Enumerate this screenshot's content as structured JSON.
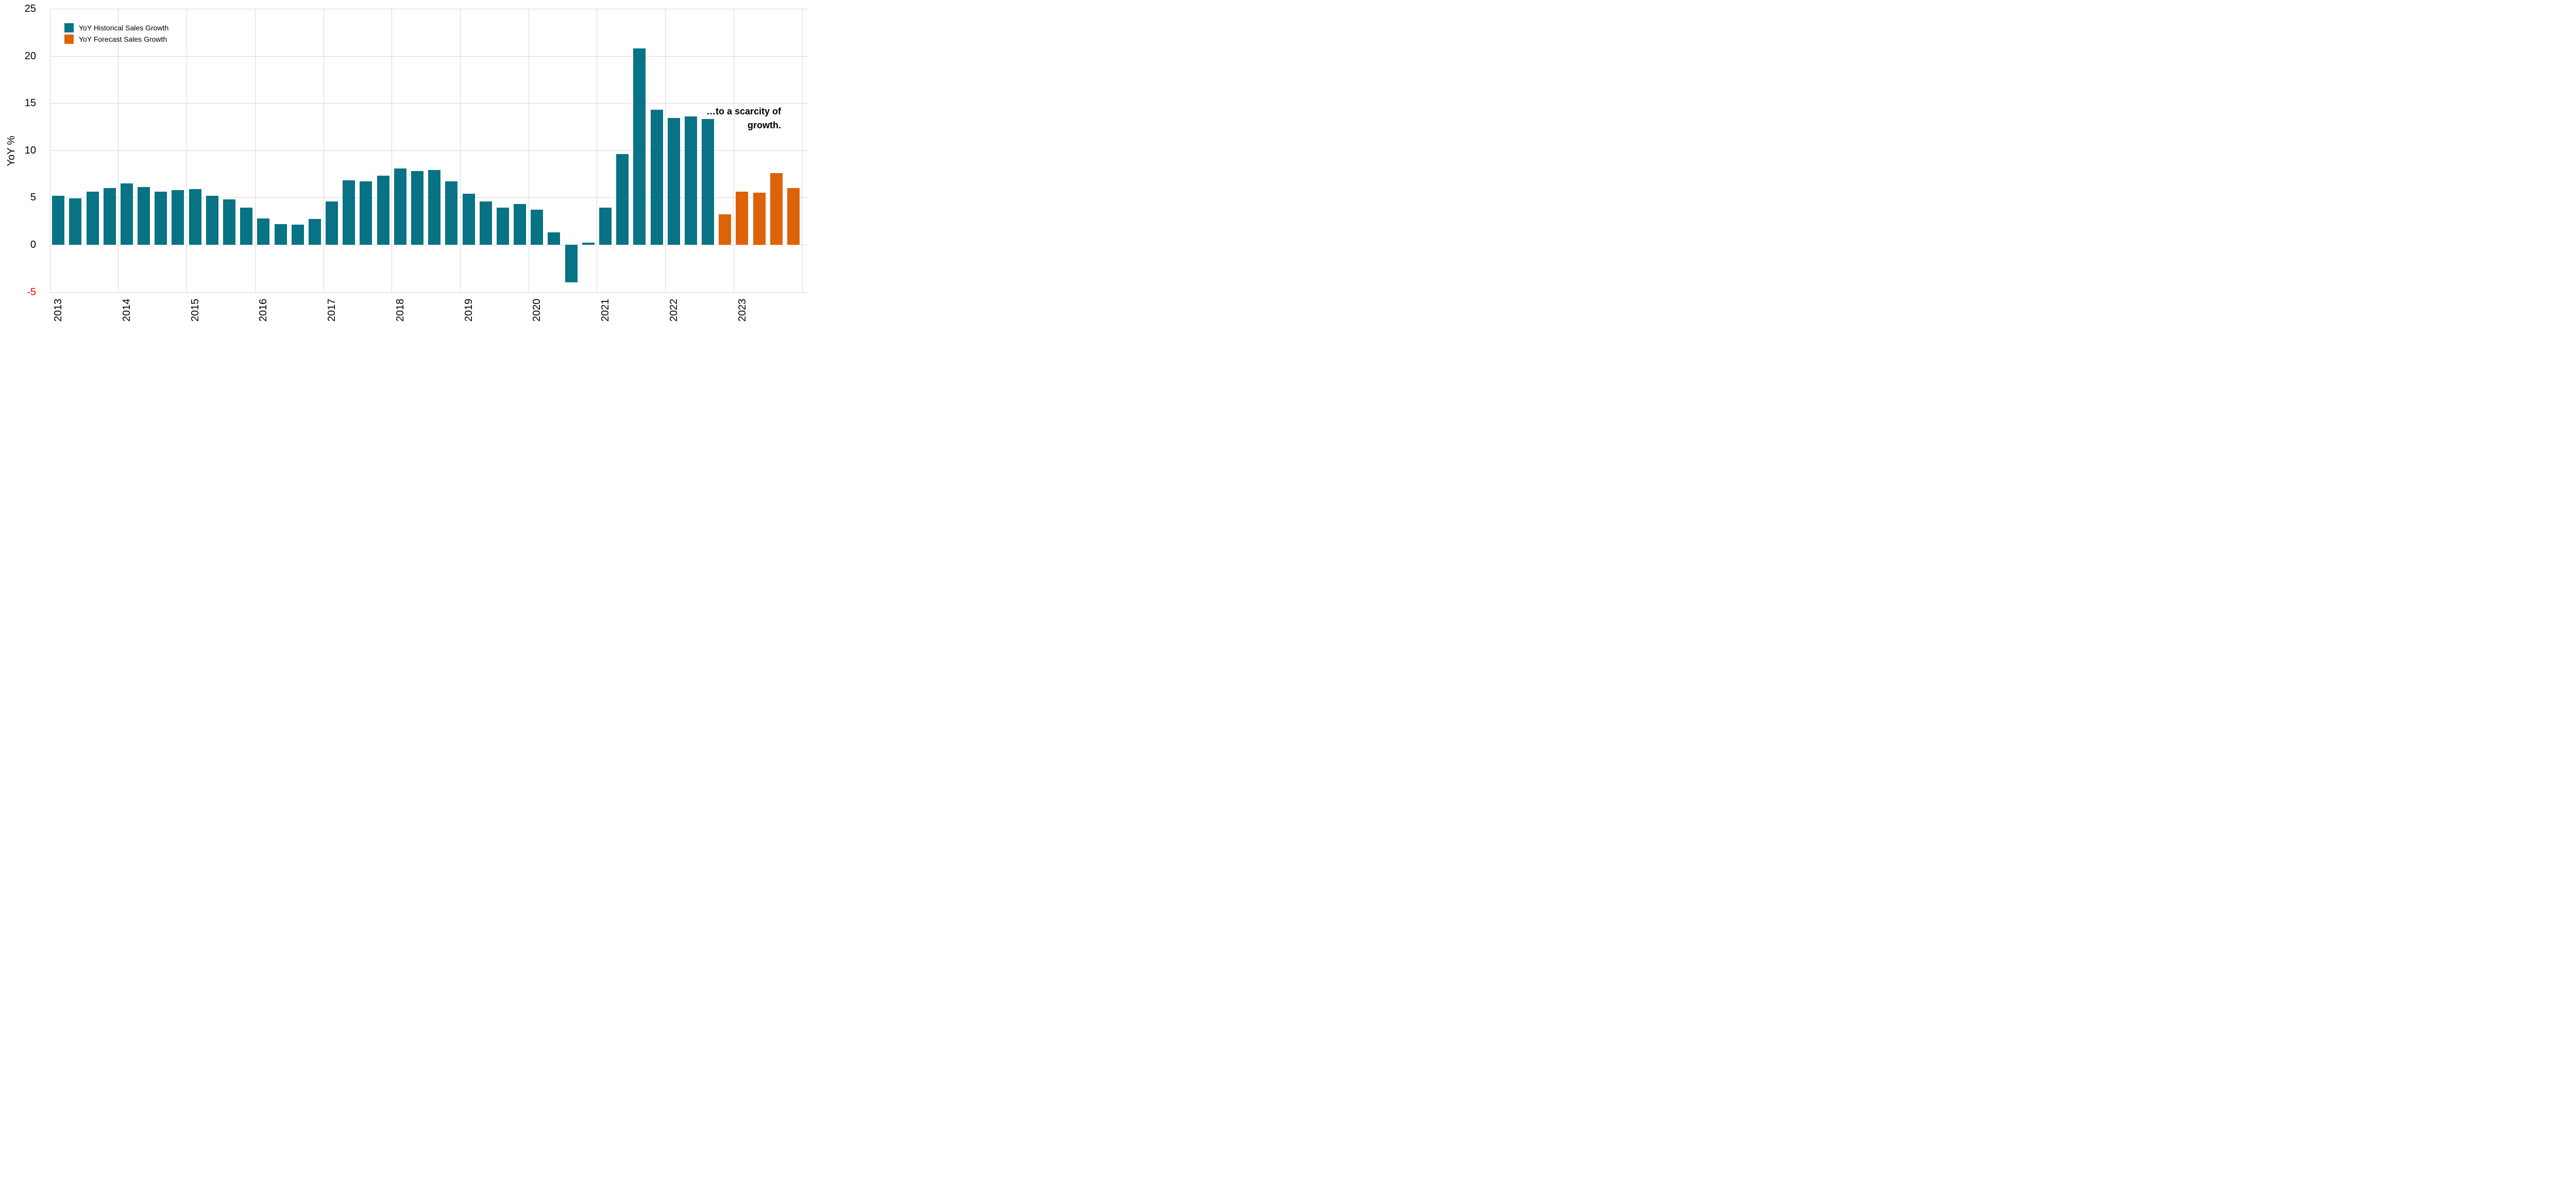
{
  "y_axis": {
    "title": "YoY %",
    "ticks": [
      25,
      20,
      15,
      10,
      5,
      0,
      -5
    ],
    "tick_color": "#000000",
    "negative_tick_color": "#FF0000"
  },
  "x_axis": {
    "year_labels": [
      "2013",
      "2014",
      "2015",
      "2016",
      "2017",
      "2018",
      "2019",
      "2020",
      "2021",
      "2022",
      "2023"
    ]
  },
  "legend": {
    "items": [
      {
        "label": "YoY Historical Sales Growth",
        "color": "#077384"
      },
      {
        "label": "YoY Forecast Sales Growth",
        "color": "#DE6207"
      }
    ]
  },
  "annotation": {
    "line1": "…to a scarcity of",
    "line2": "growth."
  },
  "colors": {
    "historical": "#077384",
    "forecast": "#DE6207",
    "gridline": "#D9D9D9",
    "background": "#FFFFFF"
  },
  "chart_data": {
    "type": "bar",
    "title": "",
    "xlabel": "",
    "ylabel": "YoY %",
    "ylim": [
      -5,
      25
    ],
    "grid": true,
    "legend_position": "top-left",
    "annotation": "…to a scarcity of growth.",
    "categories": [
      "2013 Q1",
      "2013 Q2",
      "2013 Q3",
      "2013 Q4",
      "2014 Q1",
      "2014 Q2",
      "2014 Q3",
      "2014 Q4",
      "2015 Q1",
      "2015 Q2",
      "2015 Q3",
      "2015 Q4",
      "2016 Q1",
      "2016 Q2",
      "2016 Q3",
      "2016 Q4",
      "2017 Q1",
      "2017 Q2",
      "2017 Q3",
      "2017 Q4",
      "2018 Q1",
      "2018 Q2",
      "2018 Q3",
      "2018 Q4",
      "2019 Q1",
      "2019 Q2",
      "2019 Q3",
      "2019 Q4",
      "2020 Q1",
      "2020 Q2",
      "2020 Q3",
      "2020 Q4",
      "2021 Q1",
      "2021 Q2",
      "2021 Q3",
      "2021 Q4",
      "2022 Q1",
      "2022 Q2",
      "2022 Q3",
      "2022 Q4",
      "2023 Q1",
      "2023 Q2",
      "2023 Q3",
      "2023 Q4"
    ],
    "series": [
      {
        "name": "YoY Historical Sales Growth",
        "color": "#077384",
        "values": [
          5.2,
          4.9,
          5.6,
          6.0,
          6.5,
          6.1,
          5.6,
          5.8,
          5.9,
          5.2,
          4.8,
          3.9,
          2.8,
          2.2,
          2.1,
          2.7,
          4.6,
          6.8,
          6.7,
          7.3,
          8.1,
          7.8,
          7.9,
          6.7,
          5.4,
          4.6,
          3.9,
          4.3,
          3.7,
          1.3,
          -4.0,
          0.2,
          3.9,
          9.6,
          20.8,
          14.3,
          13.4,
          13.6,
          13.3,
          null,
          null,
          null,
          null,
          null
        ]
      },
      {
        "name": "YoY Forecast Sales Growth",
        "color": "#DE6207",
        "values": [
          null,
          null,
          null,
          null,
          null,
          null,
          null,
          null,
          null,
          null,
          null,
          null,
          null,
          null,
          null,
          null,
          null,
          null,
          null,
          null,
          null,
          null,
          null,
          null,
          null,
          null,
          null,
          null,
          null,
          null,
          null,
          null,
          null,
          null,
          null,
          null,
          null,
          null,
          null,
          3.2,
          5.6,
          5.5,
          7.6,
          6.0
        ]
      }
    ]
  }
}
